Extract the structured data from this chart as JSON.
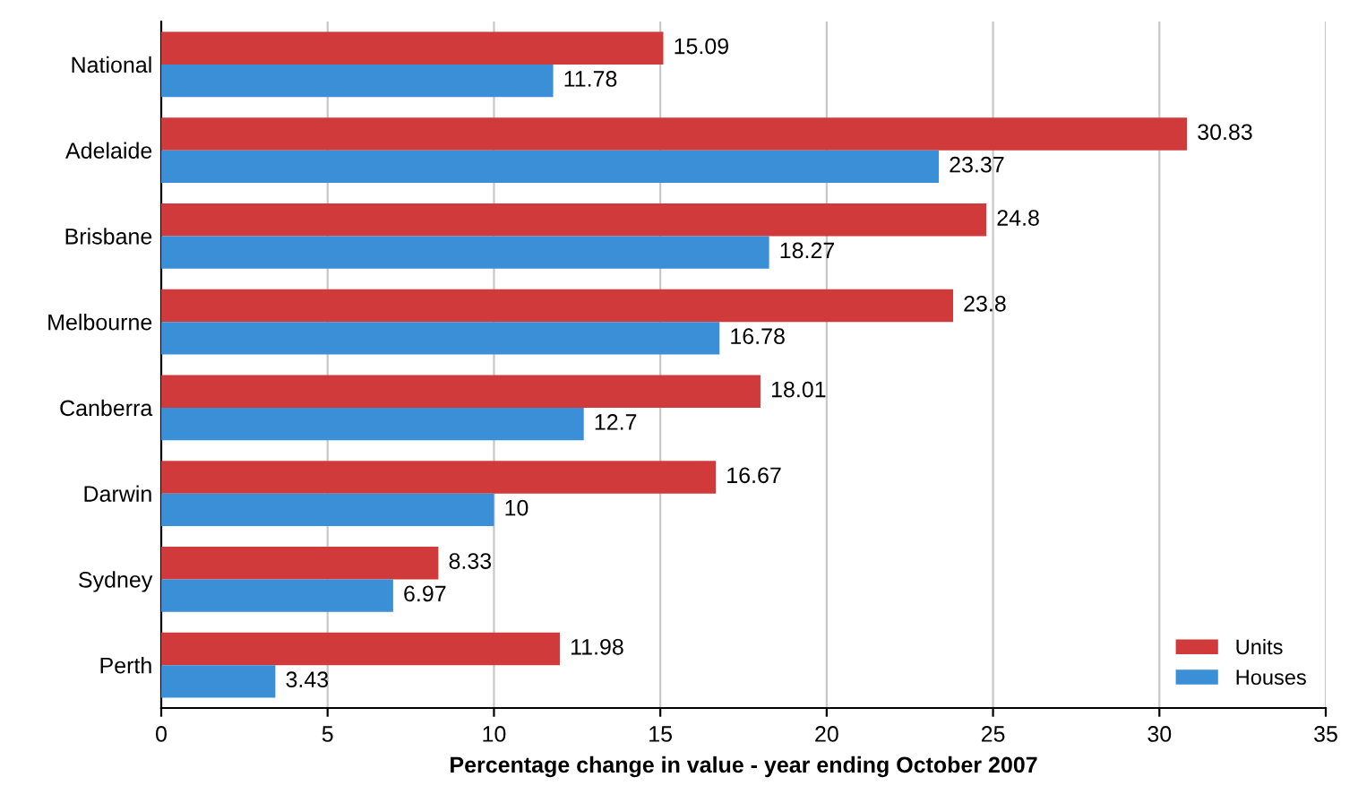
{
  "chart_data": {
    "type": "bar",
    "orientation": "horizontal",
    "xlabel": "Percentage change in value - year ending October 2007",
    "categories": [
      "National",
      "Adelaide",
      "Brisbane",
      "Melbourne",
      "Canberra",
      "Darwin",
      "Sydney",
      "Perth"
    ],
    "series": [
      {
        "name": "Units",
        "color": "#d03a3a",
        "values": [
          15.09,
          30.83,
          24.8,
          23.8,
          18.01,
          16.67,
          8.33,
          11.98
        ]
      },
      {
        "name": "Houses",
        "color": "#3a8fd6",
        "values": [
          11.78,
          23.37,
          18.27,
          16.78,
          12.7,
          10,
          6.97,
          3.43
        ]
      }
    ],
    "xlim": [
      0,
      35
    ],
    "xticks": [
      0,
      5,
      10,
      15,
      20,
      25,
      30,
      35
    ],
    "grid": "x",
    "legend": "bottom right",
    "data_labels": true
  }
}
